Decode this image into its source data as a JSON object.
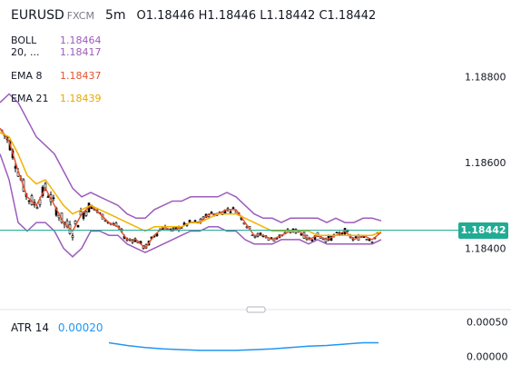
{
  "header": {
    "symbol": "EURUSD",
    "exchange": "FXCM",
    "timeframe": "5m",
    "ohlc": "O1.18446 H1.18446 L1.18442 C1.18442"
  },
  "legend": {
    "boll": {
      "label": "BOLL",
      "upper": "1.18464",
      "params": "20, ...",
      "basis": "1.18417",
      "color": "#9c5cbc"
    },
    "ema8": {
      "label": "EMA 8",
      "value": "1.18437",
      "color": "#e8522e"
    },
    "ema21": {
      "label": "EMA 21",
      "value": "1.18439",
      "color": "#f0b400"
    }
  },
  "price_axis": {
    "ticks": [
      "1.18800",
      "1.18600",
      "1.18400"
    ],
    "current_price": "1.18442",
    "current_color": "#22ab94"
  },
  "atr": {
    "label": "ATR 14",
    "value": "0.00020",
    "color": "#2196f3",
    "ticks": [
      "0.00050",
      "0.00000"
    ]
  },
  "chart_data": {
    "type": "line",
    "title": "EURUSD FXCM 5m",
    "price_range": [
      1.1828,
      1.1892
    ],
    "series": [
      {
        "name": "EMA 8",
        "x": [
          0,
          10,
          20,
          30,
          40,
          50,
          60,
          70,
          80,
          90,
          100,
          110,
          120,
          130,
          140,
          150,
          160,
          170,
          180,
          190,
          200,
          210,
          220,
          230,
          240,
          250,
          260,
          270,
          280,
          290,
          300,
          310,
          320,
          330,
          340,
          350,
          360,
          370,
          380,
          390,
          400,
          410,
          420
        ],
        "values": [
          1.1868,
          1.1865,
          1.1858,
          1.1852,
          1.185,
          1.1854,
          1.185,
          1.1846,
          1.1844,
          1.1848,
          1.185,
          1.1848,
          1.1846,
          1.1845,
          1.1842,
          1.1842,
          1.184,
          1.1843,
          1.1845,
          1.1844,
          1.1845,
          1.1846,
          1.1846,
          1.1848,
          1.1848,
          1.1849,
          1.1849,
          1.1846,
          1.1843,
          1.1843,
          1.1842,
          1.1843,
          1.1844,
          1.1844,
          1.1842,
          1.1843,
          1.1842,
          1.1843,
          1.1844,
          1.1842,
          1.1843,
          1.1842,
          1.18437
        ]
      },
      {
        "name": "EMA 21",
        "x": [
          0,
          10,
          20,
          30,
          40,
          50,
          60,
          70,
          80,
          90,
          100,
          110,
          120,
          130,
          140,
          150,
          160,
          170,
          180,
          190,
          200,
          210,
          220,
          230,
          240,
          250,
          260,
          270,
          280,
          290,
          300,
          310,
          320,
          330,
          340,
          350,
          360,
          370,
          380,
          390,
          400,
          410,
          420
        ],
        "values": [
          1.1867,
          1.1866,
          1.1862,
          1.1857,
          1.1855,
          1.1856,
          1.1853,
          1.185,
          1.1848,
          1.1849,
          1.185,
          1.1849,
          1.1848,
          1.1847,
          1.1846,
          1.1845,
          1.1844,
          1.1845,
          1.1845,
          1.1845,
          1.1845,
          1.1846,
          1.1846,
          1.1847,
          1.1848,
          1.1848,
          1.1848,
          1.1847,
          1.1846,
          1.1845,
          1.1844,
          1.1844,
          1.1844,
          1.1844,
          1.1844,
          1.1843,
          1.1843,
          1.1843,
          1.1843,
          1.1843,
          1.1843,
          1.1843,
          1.18439
        ]
      },
      {
        "name": "BOLL upper",
        "x": [
          0,
          10,
          20,
          30,
          40,
          50,
          60,
          70,
          80,
          90,
          100,
          110,
          120,
          130,
          140,
          150,
          160,
          170,
          180,
          190,
          200,
          210,
          220,
          230,
          240,
          250,
          260,
          270,
          280,
          290,
          300,
          310,
          320,
          330,
          340,
          350,
          360,
          370,
          380,
          390,
          400,
          410,
          420
        ],
        "values": [
          1.1874,
          1.1876,
          1.1874,
          1.187,
          1.1866,
          1.1864,
          1.1862,
          1.1858,
          1.1854,
          1.1852,
          1.1853,
          1.1852,
          1.1851,
          1.185,
          1.1848,
          1.1847,
          1.1847,
          1.1849,
          1.185,
          1.1851,
          1.1851,
          1.1852,
          1.1852,
          1.1852,
          1.1852,
          1.1853,
          1.1852,
          1.185,
          1.1848,
          1.1847,
          1.1847,
          1.1846,
          1.1847,
          1.1847,
          1.1847,
          1.1847,
          1.1846,
          1.1847,
          1.1846,
          1.1846,
          1.1847,
          1.1847,
          1.18464
        ]
      },
      {
        "name": "BOLL lower",
        "x": [
          0,
          10,
          20,
          30,
          40,
          50,
          60,
          70,
          80,
          90,
          100,
          110,
          120,
          130,
          140,
          150,
          160,
          170,
          180,
          190,
          200,
          210,
          220,
          230,
          240,
          250,
          260,
          270,
          280,
          290,
          300,
          310,
          320,
          330,
          340,
          350,
          360,
          370,
          380,
          390,
          400,
          410,
          420
        ],
        "values": [
          1.1862,
          1.1856,
          1.1846,
          1.1844,
          1.1846,
          1.1846,
          1.1844,
          1.184,
          1.1838,
          1.184,
          1.1844,
          1.1844,
          1.1843,
          1.1843,
          1.1841,
          1.184,
          1.1839,
          1.184,
          1.1841,
          1.1842,
          1.1843,
          1.1844,
          1.1844,
          1.1845,
          1.1845,
          1.1844,
          1.1844,
          1.1842,
          1.1841,
          1.1841,
          1.1841,
          1.1842,
          1.1842,
          1.1842,
          1.1841,
          1.1842,
          1.1841,
          1.1841,
          1.1841,
          1.1841,
          1.1841,
          1.1841,
          1.1842
        ]
      },
      {
        "name": "BOLL basis",
        "x": [
          0,
          10,
          20,
          30,
          40,
          50,
          60,
          70,
          80,
          90,
          100,
          110,
          120,
          130,
          140,
          150,
          160,
          170,
          180,
          190,
          200,
          210,
          220,
          230,
          240,
          250,
          260,
          270,
          280,
          290,
          300,
          310,
          320,
          330,
          340,
          350,
          360,
          370,
          380,
          390,
          400,
          410,
          420
        ],
        "values": [
          1.1868,
          1.1866,
          1.186,
          1.1857,
          1.1856,
          1.1855,
          1.1853,
          1.1849,
          1.1846,
          1.1846,
          1.1848,
          1.1848,
          1.1847,
          1.1846,
          1.1845,
          1.1844,
          1.1843,
          1.1844,
          1.1845,
          1.1846,
          1.1847,
          1.1848,
          1.1848,
          1.1849,
          1.1849,
          1.1848,
          1.1848,
          1.1846,
          1.1845,
          1.1844,
          1.1844,
          1.1844,
          1.1844,
          1.1844,
          1.1844,
          1.1844,
          1.1844,
          1.1844,
          1.1844,
          1.1843,
          1.1844,
          1.1844,
          1.18417
        ]
      }
    ],
    "atr": {
      "range": [
        -3e-05,
        0.0006
      ],
      "x": [
        120,
        140,
        160,
        180,
        200,
        220,
        240,
        260,
        280,
        300,
        320,
        340,
        360,
        380,
        400,
        417
      ],
      "values": [
        0.0002,
        0.00016,
        0.00013,
        0.00011,
        0.0001,
        9e-05,
        9e-05,
        9e-05,
        0.0001,
        0.00011,
        0.00013,
        0.00015,
        0.00016,
        0.00018,
        0.0002,
        0.0002
      ]
    }
  }
}
